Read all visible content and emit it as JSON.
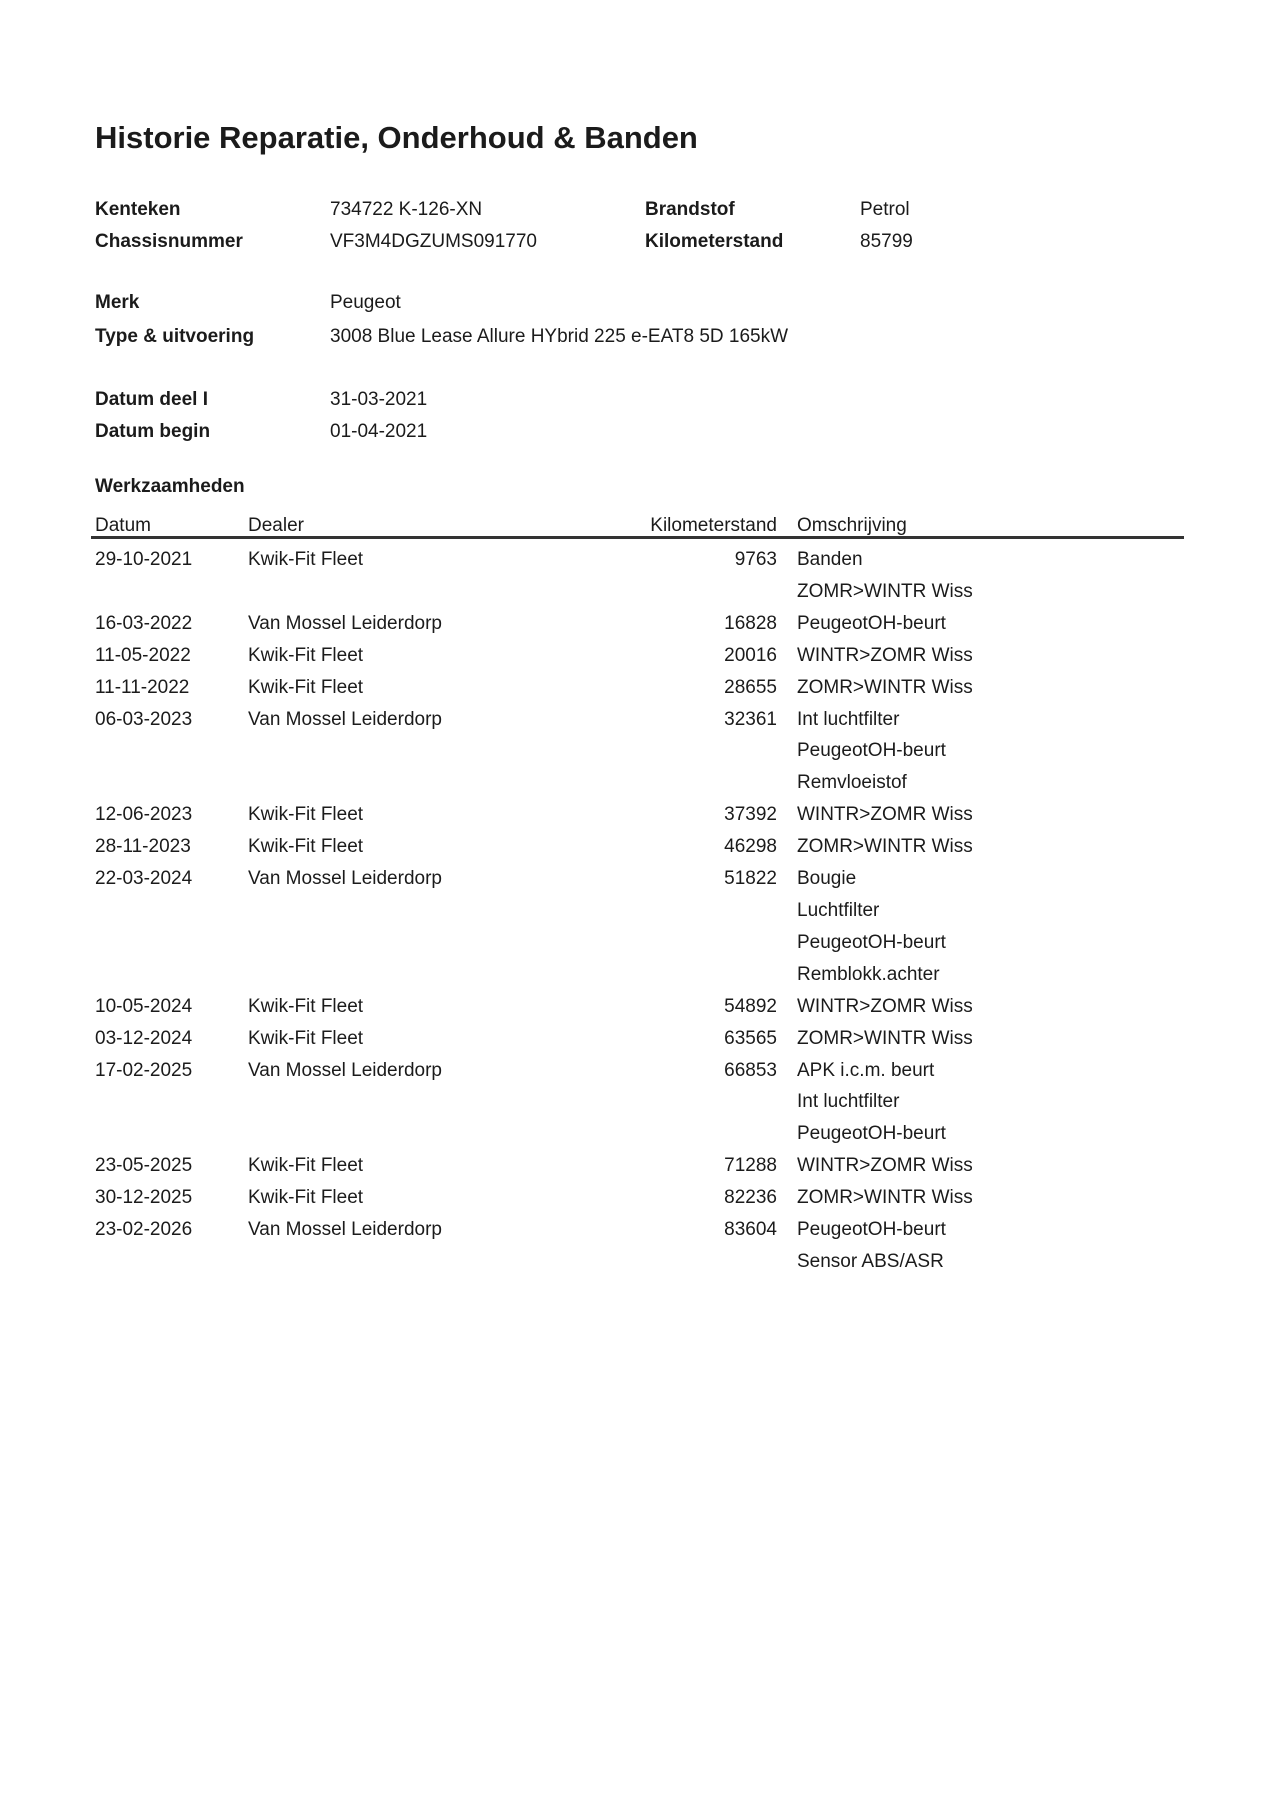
{
  "title": "Historie Reparatie, Onderhoud & Banden",
  "info": {
    "kenteken": {
      "label": "Kenteken",
      "value": "734722 K-126-XN"
    },
    "chassisnummer": {
      "label": "Chassisnummer",
      "value": "VF3M4DGZUMS091770"
    },
    "brandstof": {
      "label": "Brandstof",
      "value": "Petrol"
    },
    "kilometerstand": {
      "label": "Kilometerstand",
      "value": "85799"
    },
    "merk": {
      "label": "Merk",
      "value": "Peugeot"
    },
    "type_uitvoering": {
      "label": "Type & uitvoering",
      "value": "3008 Blue Lease Allure HYbrid 225 e-EAT8 5D 165kW"
    },
    "datum_deel_1": {
      "label": "Datum deel I",
      "value": "31-03-2021"
    },
    "datum_begin": {
      "label": "Datum begin",
      "value": "01-04-2021"
    }
  },
  "table": {
    "section_title": "Werkzaamheden",
    "columns": [
      "Datum",
      "Dealer",
      "Kilometerstand",
      "Omschrijving"
    ],
    "rows": [
      {
        "datum": "29-10-2021",
        "dealer": "Kwik-Fit Fleet",
        "kilometerstand": "9763",
        "omschrijving": [
          "Banden",
          "ZOMR>WINTR Wiss"
        ]
      },
      {
        "datum": "16-03-2022",
        "dealer": "Van Mossel Leiderdorp",
        "kilometerstand": "16828",
        "omschrijving": [
          "PeugeotOH-beurt"
        ]
      },
      {
        "datum": "11-05-2022",
        "dealer": "Kwik-Fit Fleet",
        "kilometerstand": "20016",
        "omschrijving": [
          "WINTR>ZOMR Wiss"
        ]
      },
      {
        "datum": "11-11-2022",
        "dealer": "Kwik-Fit Fleet",
        "kilometerstand": "28655",
        "omschrijving": [
          "ZOMR>WINTR Wiss"
        ]
      },
      {
        "datum": "06-03-2023",
        "dealer": "Van Mossel Leiderdorp",
        "kilometerstand": "32361",
        "omschrijving": [
          "Int luchtfilter",
          "PeugeotOH-beurt",
          "Remvloeistof"
        ]
      },
      {
        "datum": "12-06-2023",
        "dealer": "Kwik-Fit Fleet",
        "kilometerstand": "37392",
        "omschrijving": [
          "WINTR>ZOMR Wiss"
        ]
      },
      {
        "datum": "28-11-2023",
        "dealer": "Kwik-Fit Fleet",
        "kilometerstand": "46298",
        "omschrijving": [
          "ZOMR>WINTR Wiss"
        ]
      },
      {
        "datum": "22-03-2024",
        "dealer": "Van Mossel Leiderdorp",
        "kilometerstand": "51822",
        "omschrijving": [
          "Bougie",
          "Luchtfilter",
          "PeugeotOH-beurt",
          "Remblokk.achter"
        ]
      },
      {
        "datum": "10-05-2024",
        "dealer": "Kwik-Fit Fleet",
        "kilometerstand": "54892",
        "omschrijving": [
          "WINTR>ZOMR Wiss"
        ]
      },
      {
        "datum": "03-12-2024",
        "dealer": "Kwik-Fit Fleet",
        "kilometerstand": "63565",
        "omschrijving": [
          "ZOMR>WINTR Wiss"
        ]
      },
      {
        "datum": "17-02-2025",
        "dealer": "Van Mossel Leiderdorp",
        "kilometerstand": "66853",
        "omschrijving": [
          "APK i.c.m. beurt",
          "Int luchtfilter",
          "PeugeotOH-beurt"
        ]
      },
      {
        "datum": "23-05-2025",
        "dealer": "Kwik-Fit Fleet",
        "kilometerstand": "71288",
        "omschrijving": [
          "WINTR>ZOMR Wiss"
        ]
      },
      {
        "datum": "30-12-2025",
        "dealer": "Kwik-Fit Fleet",
        "kilometerstand": "82236",
        "omschrijving": [
          "ZOMR>WINTR Wiss"
        ]
      },
      {
        "datum": "23-02-2026",
        "dealer": "Van Mossel Leiderdorp",
        "kilometerstand": "83604",
        "omschrijving": [
          "PeugeotOH-beurt",
          "Sensor ABS/ASR"
        ]
      }
    ]
  }
}
